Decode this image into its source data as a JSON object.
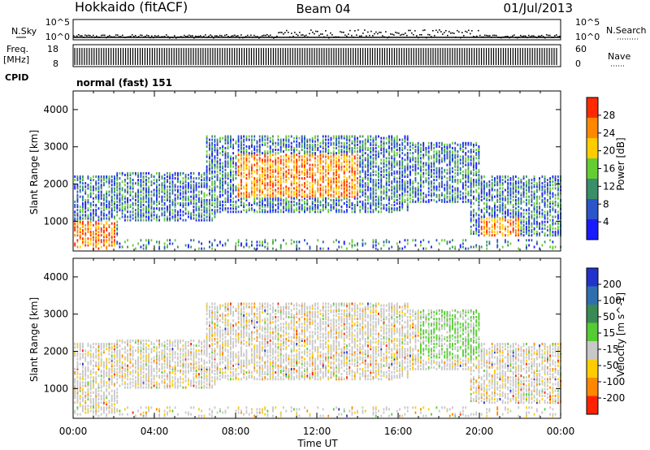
{
  "header": {
    "station": "Hokkaido (fitACF)",
    "beam": "Beam 04",
    "date": "01/Jul/2013"
  },
  "top_panels": {
    "nsky": {
      "label": "N.Sky",
      "ticks_left": [
        "10^5",
        "10^0"
      ],
      "ticks_right": [
        "10^5",
        "10^0"
      ],
      "right_label": "N.Search"
    },
    "freq": {
      "label": "Freq.",
      "unit": "[MHz]",
      "ticks_left": [
        "18",
        "8"
      ],
      "ticks_right": [
        "60",
        "0"
      ],
      "right_label": "Nave"
    },
    "cpid": {
      "label": "CPID",
      "value": "normal (fast) 151"
    }
  },
  "chart_data": [
    {
      "type": "heatmap",
      "name": "power-panel",
      "xlabel": "",
      "ylabel": "Slant Range [km]",
      "ylim": [
        200,
        4500
      ],
      "yticks": [
        1000,
        2000,
        3000,
        4000
      ],
      "xlim": [
        0,
        24
      ],
      "colorbar": {
        "label": "Power [dB]",
        "ticks": [
          4,
          8,
          12,
          16,
          20,
          24,
          28
        ],
        "colors": [
          "#1a1aff",
          "#2b55c8",
          "#3a8f6a",
          "#66cc33",
          "#ffcc00",
          "#ff8800",
          "#ff2a00"
        ]
      },
      "echo_regions": [
        {
          "t": [
            0,
            2.2
          ],
          "range": [
            300,
            2200
          ]
        },
        {
          "t": [
            2,
            7
          ],
          "range": [
            1000,
            2300
          ]
        },
        {
          "t": [
            6.5,
            16.5
          ],
          "range": [
            1200,
            3300
          ]
        },
        {
          "t": [
            16,
            20
          ],
          "range": [
            1500,
            3100
          ]
        },
        {
          "t": [
            19.5,
            24
          ],
          "range": [
            600,
            2200
          ]
        }
      ]
    },
    {
      "type": "heatmap",
      "name": "velocity-panel",
      "xlabel": "Time UT",
      "ylabel": "Slant Range [km]",
      "ylim": [
        200,
        4500
      ],
      "yticks": [
        1000,
        2000,
        3000,
        4000
      ],
      "xlim": [
        0,
        24
      ],
      "xticks": [
        "00:00",
        "04:00",
        "08:00",
        "12:00",
        "16:00",
        "20:00",
        "00:00"
      ],
      "colorbar": {
        "label": "Velocity [m s^-1]",
        "ticks": [
          "200",
          "100",
          "50",
          "15",
          "-15",
          "-50",
          "-100",
          "-200"
        ],
        "colors": [
          "#2233cc",
          "#2f6fae",
          "#3b8a55",
          "#55cc33",
          "#c8c8c8",
          "#ffcc00",
          "#ff8800",
          "#ff2200"
        ]
      }
    }
  ],
  "colors": {
    "power_high": "#ff2a00",
    "power_low": "#1a1aff",
    "ground_scatter": "#c8c8c8"
  }
}
